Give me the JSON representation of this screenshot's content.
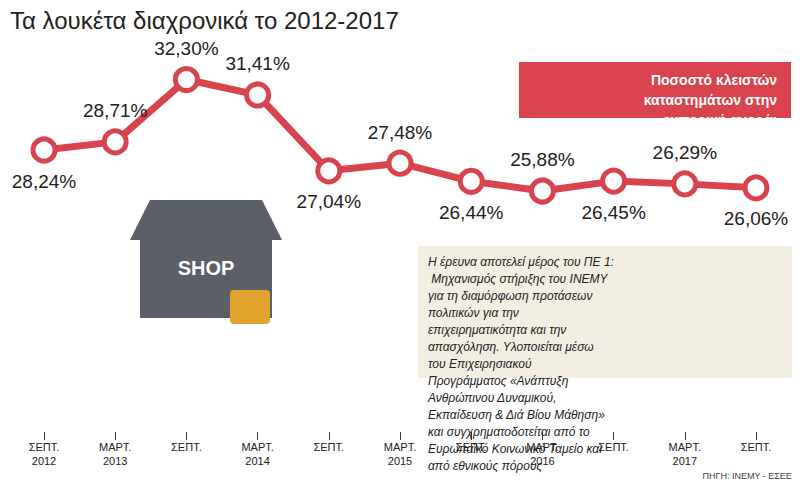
{
  "chart_data": {
    "type": "line",
    "title": "Τα λουκέτα διαχρονικά το 2012-2017",
    "subtitle": "Ποσοστό κλειστών καταστημάτων στην εμπορική αγορά: κέντρο Αθήνας",
    "note": "Η έρευνα αποτελεί μέρος του ΠΕ 1: Μηχανισμός στήριξης του ΙΝΕΜΥ για τη διαμόρφωση προτάσεων πολιτικών για την επιχειρηματικότητα και την απασχόληση. Υλοποιείται μέσω του Επιχειρησιακού Προγράμματος «Ανάπτυξη Ανθρώπινου Δυναμικού, Εκπαίδευση & Διά Βίου Μάθηση» και συγχρηματοδοτείται από το Ευρωπαϊκό Κοινωνικό Ταμείο και από εθνικούς πόρους",
    "source": "ΠΗΓΗ: ΙΝΕΜΥ - ΕΣΕΕ",
    "icon_label": "SHOP",
    "categories": [
      "ΣΕΠΤ. 2012",
      "ΜΑΡΤ. 2013",
      "ΣΕΠΤ.",
      "ΜΑΡΤ. 2014",
      "ΣΕΠΤ.",
      "ΜΑΡΤ. 2015",
      "ΣΕΠΤ.",
      "ΜΑΡΤ. 2016",
      "ΣΕΠΤ.",
      "ΜΑΡΤ. 2017",
      "ΣΕΠΤ."
    ],
    "values": [
      28.24,
      28.71,
      32.3,
      31.41,
      27.04,
      27.48,
      26.44,
      25.88,
      26.45,
      26.29,
      26.06
    ],
    "value_labels": [
      "28,24%",
      "28,71%",
      "32,30%",
      "31,41%",
      "27,04%",
      "27,48%",
      "26,44%",
      "25,88%",
      "26,45%",
      "26,29%",
      "26,06%"
    ],
    "color": "#d9434e",
    "ylim": [
      12,
      34
    ],
    "grid": false,
    "data_labels": true,
    "tick_labels": "x",
    "marker": "circle"
  }
}
